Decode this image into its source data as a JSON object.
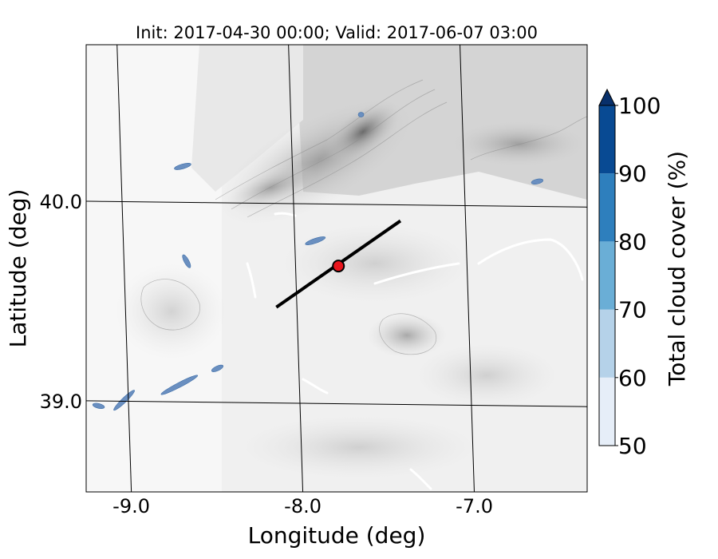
{
  "chart_data": {
    "type": "heatmap",
    "title": "Init: 2017-04-30 00:00; Valid: 2017-06-07 03:00",
    "xlabel": "Longitude (deg)",
    "ylabel": "Latitude (deg)",
    "xlim": [
      -9.25,
      -6.35
    ],
    "ylim": [
      38.55,
      40.8
    ],
    "xticks": [
      {
        "value": -9.0,
        "label": "-9.0"
      },
      {
        "value": -8.0,
        "label": "-8.0"
      },
      {
        "value": -7.0,
        "label": "-7.0"
      }
    ],
    "yticks": [
      {
        "value": 39.0,
        "label": "39.0"
      },
      {
        "value": 40.0,
        "label": "40.0"
      }
    ],
    "grid": true,
    "background": "grey-shaded terrain contours",
    "cross_section_line": {
      "start": {
        "lon": -8.12,
        "lat": 39.48
      },
      "end": {
        "lon": -7.38,
        "lat": 39.92
      }
    },
    "point_marker": {
      "lon": -7.75,
      "lat": 39.69,
      "color": "#e8141c"
    },
    "cloud_patches_lonlat": [
      [
        [
          -9.2,
          38.98
        ],
        [
          -9.15,
          38.97
        ]
      ],
      [
        [
          -9.08,
          38.96
        ],
        [
          -8.97,
          39.05
        ]
      ],
      [
        [
          -8.8,
          39.04
        ],
        [
          -8.6,
          39.13
        ]
      ],
      [
        [
          -8.5,
          39.16
        ],
        [
          -8.45,
          39.18
        ]
      ],
      [
        [
          -8.65,
          39.73
        ],
        [
          -8.62,
          39.68
        ]
      ],
      [
        [
          -8.68,
          40.17
        ],
        [
          -8.6,
          40.19
        ]
      ],
      [
        [
          -7.93,
          39.8
        ],
        [
          -7.83,
          39.83
        ]
      ],
      [
        [
          -7.59,
          40.45
        ],
        [
          -7.59,
          40.45
        ]
      ],
      [
        [
          -6.6,
          40.12
        ],
        [
          -6.55,
          40.13
        ]
      ]
    ],
    "colorbar": {
      "label": "Total cloud cover (%)",
      "levels": [
        50,
        60,
        70,
        80,
        90,
        100
      ],
      "tick_labels": [
        "50",
        "60",
        "70",
        "80",
        "90",
        "100"
      ],
      "colors": [
        "#e6eef8",
        "#b5d2e9",
        "#6aaed6",
        "#2e7fbd",
        "#084a93"
      ],
      "extend_color": "#08306b",
      "extend": "max"
    }
  }
}
